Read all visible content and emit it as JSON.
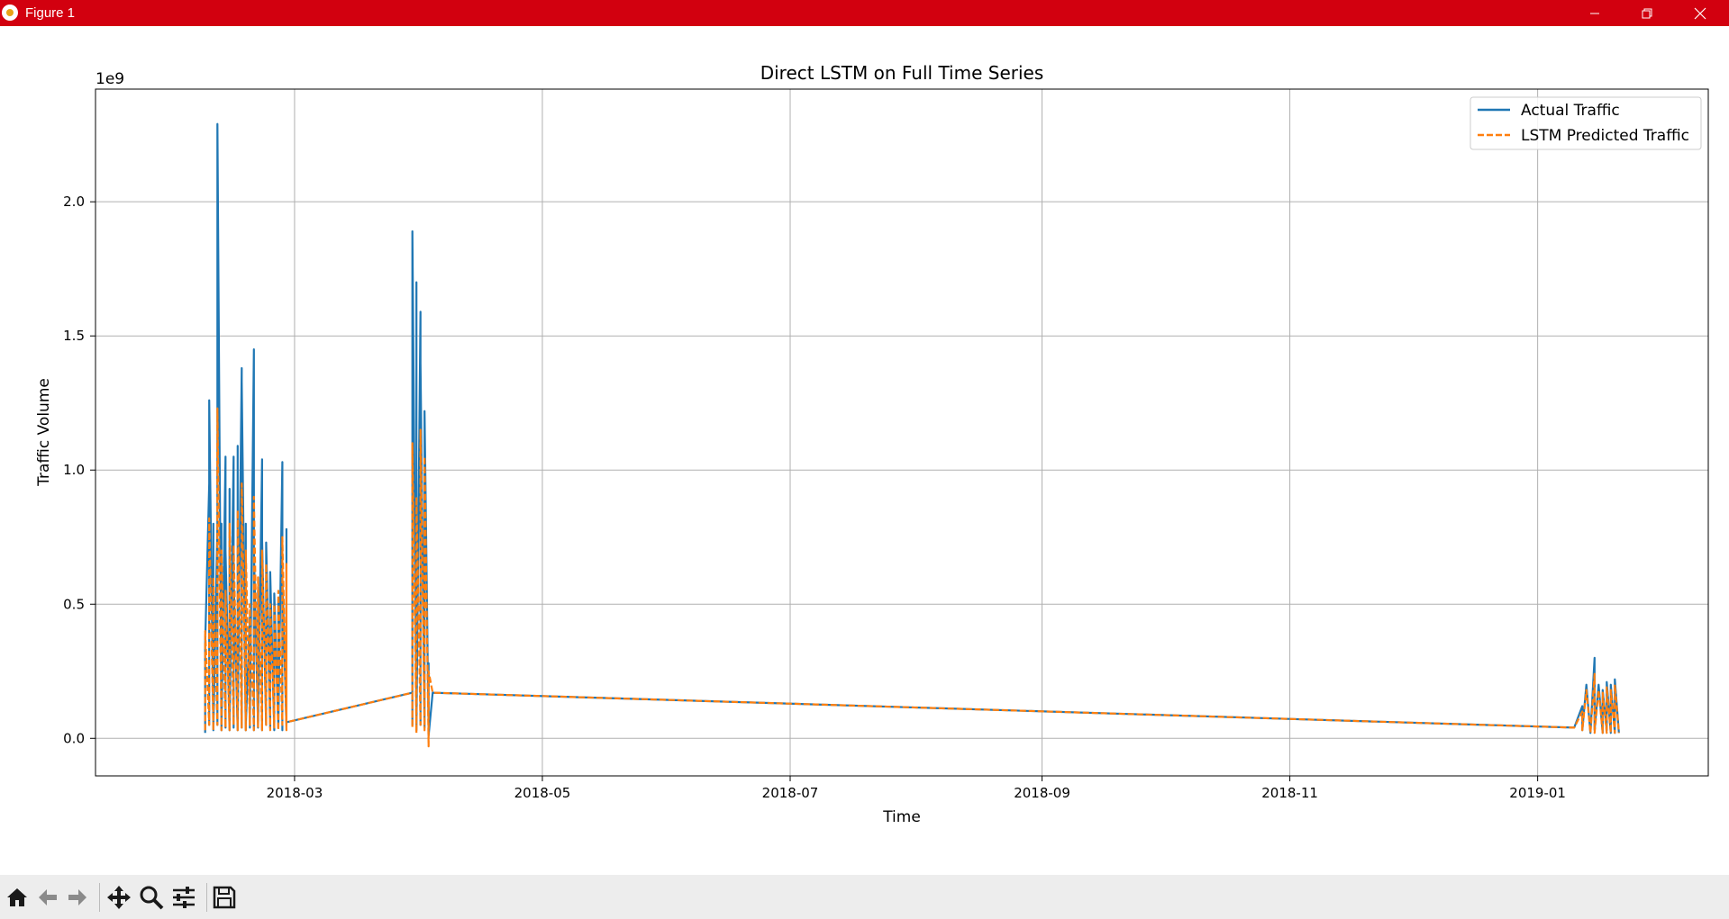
{
  "window": {
    "title": "Figure 1",
    "titlebar_color": "#d2000f"
  },
  "toolbar": {
    "buttons": [
      {
        "name": "home-icon",
        "tooltip": "Home"
      },
      {
        "name": "back-arrow-icon",
        "tooltip": "Back"
      },
      {
        "name": "forward-arrow-icon",
        "tooltip": "Forward"
      },
      {
        "name": "pan-move-icon",
        "tooltip": "Pan"
      },
      {
        "name": "zoom-magnifier-icon",
        "tooltip": "Zoom"
      },
      {
        "name": "configure-subplots-icon",
        "tooltip": "Subplots"
      },
      {
        "name": "save-floppy-icon",
        "tooltip": "Save"
      }
    ]
  },
  "chart_data": {
    "type": "line",
    "title": "Direct LSTM on Full Time Series",
    "xlabel": "Time",
    "ylabel": "Traffic Volume",
    "y_offset_label": "1e9",
    "y_scale_factor": 1000000000,
    "xlim": [
      "2018-01-11",
      "2019-02-12"
    ],
    "ylim": [
      -0.14,
      2.42
    ],
    "x_ticks": [
      {
        "date": "2018-03-01",
        "label": "2018-03"
      },
      {
        "date": "2018-05-01",
        "label": "2018-05"
      },
      {
        "date": "2018-07-01",
        "label": "2018-07"
      },
      {
        "date": "2018-09-01",
        "label": "2018-09"
      },
      {
        "date": "2018-11-01",
        "label": "2018-11"
      },
      {
        "date": "2019-01-01",
        "label": "2019-01"
      }
    ],
    "y_ticks": [
      {
        "value": 0.0,
        "label": "0.0"
      },
      {
        "value": 0.5,
        "label": "0.5"
      },
      {
        "value": 1.0,
        "label": "1.0"
      },
      {
        "value": 1.5,
        "label": "1.5"
      },
      {
        "value": 2.0,
        "label": "2.0"
      }
    ],
    "grid": true,
    "legend_position": "top-right",
    "series": [
      {
        "name": "Actual Traffic",
        "color": "#1f77b4",
        "style": "solid",
        "points": [
          [
            "2018-02-07",
            0.02
          ],
          [
            "2018-02-07",
            0.35
          ],
          [
            "2018-02-08",
            0.95
          ],
          [
            "2018-02-08",
            0.05
          ],
          [
            "2018-02-08",
            1.26
          ],
          [
            "2018-02-09",
            0.04
          ],
          [
            "2018-02-09",
            0.8
          ],
          [
            "2018-02-09",
            0.03
          ],
          [
            "2018-02-10",
            0.79
          ],
          [
            "2018-02-10",
            0.05
          ],
          [
            "2018-02-10",
            2.29
          ],
          [
            "2018-02-11",
            0.04
          ],
          [
            "2018-02-11",
            0.8
          ],
          [
            "2018-02-11",
            0.03
          ],
          [
            "2018-02-12",
            1.05
          ],
          [
            "2018-02-12",
            0.04
          ],
          [
            "2018-02-12",
            0.7
          ],
          [
            "2018-02-13",
            0.03
          ],
          [
            "2018-02-13",
            0.93
          ],
          [
            "2018-02-13",
            0.05
          ],
          [
            "2018-02-14",
            1.05
          ],
          [
            "2018-02-14",
            0.04
          ],
          [
            "2018-02-14",
            0.6
          ],
          [
            "2018-02-15",
            0.03
          ],
          [
            "2018-02-15",
            1.09
          ],
          [
            "2018-02-15",
            0.05
          ],
          [
            "2018-02-16",
            1.38
          ],
          [
            "2018-02-16",
            0.04
          ],
          [
            "2018-02-16",
            1.33
          ],
          [
            "2018-02-17",
            0.03
          ],
          [
            "2018-02-17",
            0.8
          ],
          [
            "2018-02-17",
            0.05
          ],
          [
            "2018-02-18",
            0.45
          ],
          [
            "2018-02-18",
            0.04
          ],
          [
            "2018-02-19",
            1.45
          ],
          [
            "2018-02-19",
            0.03
          ],
          [
            "2018-02-19",
            0.7
          ],
          [
            "2018-02-20",
            0.05
          ],
          [
            "2018-02-20",
            0.55
          ],
          [
            "2018-02-20",
            0.04
          ],
          [
            "2018-02-21",
            1.04
          ],
          [
            "2018-02-21",
            0.03
          ],
          [
            "2018-02-21",
            0.74
          ],
          [
            "2018-02-22",
            0.05
          ],
          [
            "2018-02-22",
            0.73
          ],
          [
            "2018-02-23",
            0.04
          ],
          [
            "2018-02-23",
            0.62
          ],
          [
            "2018-02-24",
            0.03
          ],
          [
            "2018-02-24",
            0.54
          ],
          [
            "2018-02-25",
            0.05
          ],
          [
            "2018-02-25",
            0.52
          ],
          [
            "2018-02-25",
            0.04
          ],
          [
            "2018-02-26",
            1.03
          ],
          [
            "2018-02-26",
            0.03
          ],
          [
            "2018-02-26",
            0.6
          ],
          [
            "2018-02-27",
            0.05
          ],
          [
            "2018-02-27",
            0.78
          ],
          [
            "2018-02-27",
            0.06
          ],
          [
            "2018-03-30",
            0.17
          ],
          [
            "2018-03-30",
            0.05
          ],
          [
            "2018-03-30",
            1.89
          ],
          [
            "2018-03-31",
            0.04
          ],
          [
            "2018-03-31",
            1.7
          ],
          [
            "2018-03-31",
            0.03
          ],
          [
            "2018-04-01",
            1.59
          ],
          [
            "2018-04-01",
            0.05
          ],
          [
            "2018-04-01",
            1.4
          ],
          [
            "2018-04-02",
            0.04
          ],
          [
            "2018-04-02",
            1.22
          ],
          [
            "2018-04-03",
            0.03
          ],
          [
            "2018-04-03",
            0.28
          ],
          [
            "2018-04-03",
            0.01
          ],
          [
            "2018-04-04",
            0.17
          ],
          [
            "2019-01-10",
            0.04
          ],
          [
            "2019-01-12",
            0.12
          ],
          [
            "2019-01-12",
            0.03
          ],
          [
            "2019-01-13",
            0.2
          ],
          [
            "2019-01-14",
            0.02
          ],
          [
            "2019-01-15",
            0.3
          ],
          [
            "2019-01-15",
            0.03
          ],
          [
            "2019-01-16",
            0.2
          ],
          [
            "2019-01-17",
            0.02
          ],
          [
            "2019-01-17",
            0.18
          ],
          [
            "2019-01-18",
            0.03
          ],
          [
            "2019-01-18",
            0.21
          ],
          [
            "2019-01-19",
            0.02
          ],
          [
            "2019-01-19",
            0.2
          ],
          [
            "2019-01-20",
            0.02
          ],
          [
            "2019-01-20",
            0.22
          ],
          [
            "2019-01-21",
            0.02
          ]
        ]
      },
      {
        "name": "LSTM Predicted Traffic",
        "color": "#ff7f0e",
        "style": "dashed",
        "points": [
          [
            "2018-02-07",
            0.03
          ],
          [
            "2018-02-07",
            0.4
          ],
          [
            "2018-02-08",
            0.05
          ],
          [
            "2018-02-08",
            0.82
          ],
          [
            "2018-02-09",
            0.03
          ],
          [
            "2018-02-09",
            0.6
          ],
          [
            "2018-02-10",
            0.05
          ],
          [
            "2018-02-10",
            1.23
          ],
          [
            "2018-02-11",
            0.03
          ],
          [
            "2018-02-11",
            0.7
          ],
          [
            "2018-02-12",
            0.04
          ],
          [
            "2018-02-12",
            0.55
          ],
          [
            "2018-02-13",
            0.03
          ],
          [
            "2018-02-13",
            0.8
          ],
          [
            "2018-02-14",
            0.05
          ],
          [
            "2018-02-14",
            0.72
          ],
          [
            "2018-02-15",
            0.03
          ],
          [
            "2018-02-15",
            0.85
          ],
          [
            "2018-02-16",
            0.04
          ],
          [
            "2018-02-16",
            0.95
          ],
          [
            "2018-02-17",
            0.03
          ],
          [
            "2018-02-17",
            0.7
          ],
          [
            "2018-02-18",
            0.05
          ],
          [
            "2018-02-18",
            0.5
          ],
          [
            "2018-02-19",
            0.03
          ],
          [
            "2018-02-19",
            0.9
          ],
          [
            "2018-02-20",
            0.04
          ],
          [
            "2018-02-20",
            0.6
          ],
          [
            "2018-02-21",
            0.03
          ],
          [
            "2018-02-21",
            0.7
          ],
          [
            "2018-02-22",
            0.05
          ],
          [
            "2018-02-22",
            0.65
          ],
          [
            "2018-02-23",
            0.03
          ],
          [
            "2018-02-23",
            0.5
          ],
          [
            "2018-02-24",
            0.04
          ],
          [
            "2018-02-24",
            0.5
          ],
          [
            "2018-02-25",
            0.03
          ],
          [
            "2018-02-25",
            0.55
          ],
          [
            "2018-02-26",
            0.05
          ],
          [
            "2018-02-26",
            0.75
          ],
          [
            "2018-02-27",
            0.03
          ],
          [
            "2018-02-27",
            0.65
          ],
          [
            "2018-02-27",
            0.06
          ],
          [
            "2018-03-30",
            0.17
          ],
          [
            "2018-03-30",
            0.04
          ],
          [
            "2018-03-30",
            1.1
          ],
          [
            "2018-03-31",
            0.02
          ],
          [
            "2018-03-31",
            0.9
          ],
          [
            "2018-04-01",
            0.05
          ],
          [
            "2018-04-01",
            1.15
          ],
          [
            "2018-04-02",
            0.03
          ],
          [
            "2018-04-02",
            1.05
          ],
          [
            "2018-04-03",
            -0.03
          ],
          [
            "2018-04-03",
            0.25
          ],
          [
            "2018-04-04",
            0.17
          ],
          [
            "2019-01-10",
            0.04
          ],
          [
            "2019-01-12",
            0.1
          ],
          [
            "2019-01-12",
            0.03
          ],
          [
            "2019-01-13",
            0.18
          ],
          [
            "2019-01-14",
            0.02
          ],
          [
            "2019-01-15",
            0.24
          ],
          [
            "2019-01-15",
            0.02
          ],
          [
            "2019-01-16",
            0.18
          ],
          [
            "2019-01-17",
            0.02
          ],
          [
            "2019-01-17",
            0.17
          ],
          [
            "2019-01-18",
            0.02
          ],
          [
            "2019-01-18",
            0.19
          ],
          [
            "2019-01-19",
            0.02
          ],
          [
            "2019-01-19",
            0.18
          ],
          [
            "2019-01-20",
            0.02
          ],
          [
            "2019-01-20",
            0.2
          ],
          [
            "2019-01-21",
            0.02
          ]
        ]
      }
    ]
  }
}
